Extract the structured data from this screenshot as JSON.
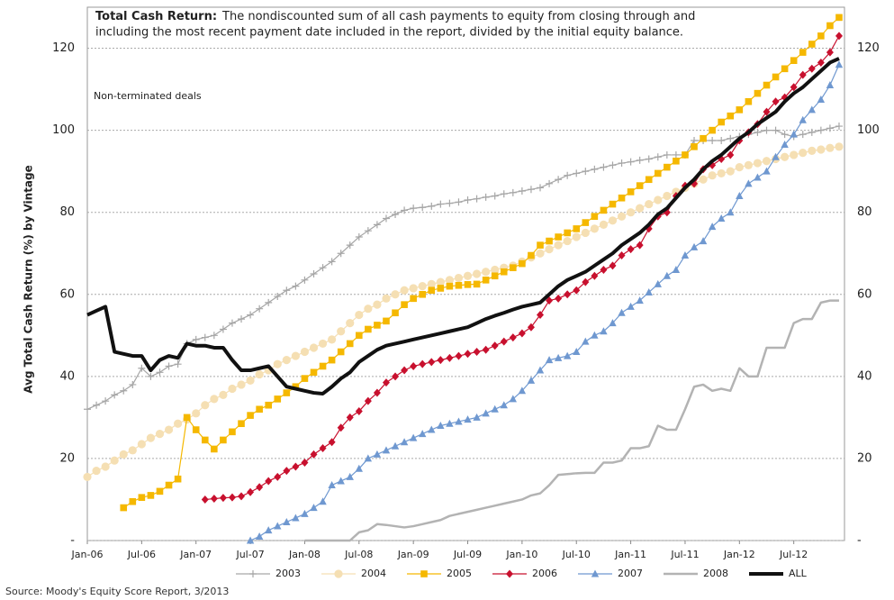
{
  "chart_data": {
    "type": "line",
    "title": "Total Cash Return:",
    "description": [
      "The nondiscounted sum of all cash payments to equity from closing through and",
      "including the most recent payment date included in the report, divided by the initial equity balance."
    ],
    "annotation": "Non-terminated deals",
    "y_label": "Avg Total Cash Return (%) by Vintage",
    "source": "Source: Moody's Equity Score Report, 3/2013",
    "ylim": [
      0,
      130
    ],
    "yticks": [
      {
        "value": 0,
        "label": "-"
      },
      20,
      40,
      60,
      80,
      100,
      120
    ],
    "grid": true,
    "legend": "bottom",
    "categories": [
      "Jan-06",
      null,
      null,
      null,
      null,
      null,
      "Jul-06",
      null,
      null,
      null,
      null,
      null,
      "Jan-07",
      null,
      null,
      null,
      null,
      null,
      "Jul-07",
      null,
      null,
      null,
      null,
      null,
      "Jan-08",
      null,
      null,
      null,
      null,
      null,
      "Jul-08",
      null,
      null,
      null,
      null,
      null,
      "Jan-09",
      null,
      null,
      null,
      null,
      null,
      "Jul-09",
      null,
      null,
      null,
      null,
      null,
      "Jan-10",
      null,
      null,
      null,
      null,
      null,
      "Jul-10",
      null,
      null,
      null,
      null,
      null,
      "Jan-11",
      null,
      null,
      null,
      null,
      null,
      "Jul-11",
      null,
      null,
      null,
      null,
      null,
      "Jan-12",
      null,
      null,
      null,
      null,
      null,
      "Jul-12",
      null,
      null,
      null,
      null,
      null
    ],
    "series": [
      {
        "name": "2003",
        "color": "#a6a6a6",
        "marker": "plus",
        "width": 1.2,
        "values": [
          32,
          33,
          34,
          35.5,
          36.5,
          38,
          42,
          40,
          41,
          42.5,
          43,
          48,
          49,
          49.5,
          50,
          51.5,
          53,
          54,
          55,
          56.5,
          58,
          59.5,
          61,
          62,
          63.5,
          65,
          66.5,
          68,
          70,
          72,
          74,
          75.5,
          77,
          78.5,
          79.5,
          80.5,
          81,
          81.2,
          81.5,
          82,
          82.2,
          82.5,
          83,
          83.3,
          83.7,
          84,
          84.5,
          84.8,
          85.2,
          85.6,
          86,
          87,
          88,
          89,
          89.5,
          90,
          90.5,
          91,
          91.5,
          92,
          92.3,
          92.7,
          93,
          93.5,
          94,
          94,
          94,
          97.5,
          97.5,
          97.5,
          97.5,
          98,
          98.5,
          99,
          99.5,
          100,
          100,
          99,
          98.5,
          99,
          99.5,
          100,
          100.5,
          101
        ]
      },
      {
        "name": "2004",
        "color": "#f5dfb3",
        "marker": "circle",
        "width": 1.2,
        "values": [
          15.5,
          17,
          18,
          19.5,
          21,
          22,
          23.5,
          25,
          26,
          27,
          28.5,
          29.5,
          31,
          33,
          34.5,
          35.5,
          37,
          38,
          39,
          40.5,
          41.5,
          43,
          44,
          45,
          46,
          47,
          48,
          49,
          51,
          53,
          55,
          56.5,
          57.5,
          59,
          60,
          61,
          61.5,
          62,
          62.5,
          63,
          63.5,
          64,
          64.5,
          65,
          65.5,
          66,
          66.5,
          67,
          68,
          69,
          70,
          71,
          72,
          73,
          74,
          75,
          76,
          77,
          78,
          79,
          80,
          81,
          82,
          83,
          84,
          85,
          86,
          87,
          88,
          89,
          89.5,
          90,
          91,
          91.5,
          92,
          92.5,
          93,
          93.5,
          94,
          94.5,
          95,
          95.3,
          95.7,
          96
        ]
      },
      {
        "name": "2005",
        "color": "#f5b800",
        "marker": "square",
        "width": 1.2,
        "values": [
          null,
          null,
          null,
          null,
          8,
          9.5,
          10.5,
          11,
          12,
          13.5,
          15,
          30,
          27,
          24.5,
          22.3,
          24.5,
          26.5,
          28.5,
          30.5,
          32,
          33,
          34.5,
          36,
          37.5,
          39.5,
          41,
          42.5,
          44,
          46,
          48,
          50,
          51.5,
          52.5,
          53.5,
          55.5,
          57.5,
          59,
          60,
          61,
          61.5,
          62,
          62.2,
          62.4,
          62.5,
          63.5,
          64.5,
          65.5,
          66.5,
          67.5,
          69.5,
          72,
          73,
          74,
          75,
          76,
          77.5,
          79,
          80.5,
          82,
          83.5,
          85,
          86.5,
          88,
          89.5,
          91,
          92.5,
          94,
          96,
          98,
          100,
          102,
          103.5,
          105,
          107,
          109,
          111,
          113,
          115,
          117,
          119,
          121,
          123,
          125.5,
          127.5
        ]
      },
      {
        "name": "2006",
        "color": "#c8102e",
        "marker": "diamond",
        "width": 1.2,
        "values": [
          null,
          null,
          null,
          null,
          null,
          null,
          null,
          null,
          null,
          null,
          null,
          null,
          null,
          10,
          10.2,
          10.4,
          10.5,
          10.8,
          11.8,
          13,
          14.5,
          15.5,
          17,
          18,
          19,
          21,
          22.5,
          24,
          27.5,
          30,
          31.5,
          34,
          36,
          38.5,
          40,
          41.5,
          42.5,
          43,
          43.5,
          44,
          44.5,
          45,
          45.5,
          46,
          46.5,
          47.5,
          48.5,
          49.5,
          50.5,
          52,
          55,
          58.5,
          59,
          60,
          61,
          63,
          64.5,
          66,
          67,
          69.5,
          71,
          72,
          76,
          79,
          80,
          84,
          86.5,
          87,
          90.5,
          91.5,
          93,
          94,
          97.5,
          99.5,
          101.5,
          104.5,
          107,
          108,
          110.5,
          113.5,
          115,
          116.5,
          119,
          123
        ]
      },
      {
        "name": "2007",
        "color": "#6f98d0",
        "marker": "triangle",
        "width": 1.2,
        "values": [
          null,
          null,
          null,
          null,
          null,
          null,
          null,
          null,
          null,
          null,
          null,
          null,
          null,
          null,
          null,
          null,
          null,
          null,
          0,
          1,
          2.5,
          3.5,
          4.5,
          5.5,
          6.5,
          8,
          9.5,
          13.5,
          14.5,
          15.5,
          17.5,
          20,
          21,
          22,
          23,
          24,
          25,
          26,
          27,
          28,
          28.5,
          29,
          29.5,
          30,
          31,
          32,
          33,
          34.5,
          36.5,
          39,
          41.5,
          44,
          44.5,
          45,
          46,
          48.5,
          50,
          51,
          53,
          55.5,
          57,
          58.5,
          60.5,
          62.5,
          64.5,
          66,
          69.5,
          71.5,
          73,
          76.5,
          78.5,
          80,
          84,
          87,
          88.5,
          90,
          93.5,
          96.5,
          99,
          102.5,
          105,
          107.5,
          111,
          116
        ]
      },
      {
        "name": "2008",
        "color": "#b3b3b3",
        "width": 2.5,
        "values": [
          null,
          null,
          null,
          null,
          null,
          null,
          null,
          null,
          null,
          null,
          null,
          null,
          null,
          null,
          null,
          null,
          null,
          null,
          null,
          null,
          null,
          null,
          null,
          null,
          0,
          0,
          0,
          0,
          0,
          0,
          2,
          2.5,
          4,
          3.8,
          3.5,
          3.2,
          3.5,
          4,
          4.5,
          5,
          6,
          6.5,
          7,
          7.5,
          8,
          8.5,
          9,
          9.5,
          10,
          11,
          11.5,
          13.5,
          16,
          16.2,
          16.4,
          16.5,
          16.5,
          19,
          19,
          19.5,
          22.5,
          22.5,
          23,
          28,
          27,
          27,
          32,
          37.5,
          38,
          36.5,
          37,
          36.5,
          42,
          40,
          40,
          47,
          47,
          47,
          53,
          54,
          54,
          58,
          58.5,
          58.5
        ]
      },
      {
        "name": "ALL",
        "color": "#111111",
        "width": 4,
        "values": [
          55,
          56,
          57,
          46,
          45.5,
          45,
          45,
          41.5,
          44,
          45,
          44.5,
          48,
          47.5,
          47.5,
          47,
          47,
          44,
          41.5,
          41.5,
          42,
          42.5,
          40,
          37.5,
          37,
          36.5,
          36,
          35.8,
          37.5,
          39.5,
          41,
          43.5,
          45,
          46.5,
          47.5,
          48,
          48.5,
          49,
          49.5,
          50,
          50.5,
          51,
          51.5,
          52,
          53,
          54,
          54.8,
          55.5,
          56.3,
          57,
          57.5,
          58,
          60,
          62,
          63.5,
          64.5,
          65.5,
          67,
          68.5,
          70,
          72,
          73.5,
          75,
          77,
          79.5,
          81,
          83.5,
          86,
          88,
          90.5,
          92.5,
          94,
          96,
          98,
          99.5,
          101.5,
          103,
          104.5,
          107,
          109,
          110.5,
          112.5,
          114.5,
          116.5,
          117.5
        ]
      }
    ]
  }
}
